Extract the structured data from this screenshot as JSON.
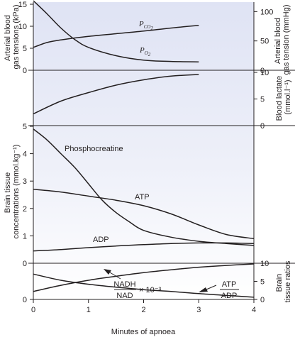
{
  "chart_data": [
    {
      "panel": "blood_gases",
      "type": "line",
      "ylabel_left": "Arterial blood gas tensions (kPa)",
      "ylabel_right": "Arterial blood gas tension (mmHg)",
      "left_ticks": [
        "15",
        "10",
        "5",
        "0"
      ],
      "right_ticks": [
        "100",
        "50",
        "0"
      ],
      "ylim": [
        0,
        16
      ],
      "series": [
        {
          "name": "Pco2",
          "label_main": "P",
          "label_sub": "CO",
          "label_sub2": "2",
          "x": [
            0,
            0.25,
            0.5,
            1,
            1.5,
            2,
            2.5,
            3
          ],
          "y": [
            5.2,
            6.3,
            6.9,
            7.7,
            8.3,
            8.9,
            9.6,
            10.2
          ]
        },
        {
          "name": "Po2",
          "label_main": "P",
          "label_sub": "O",
          "label_sub2": "2",
          "x": [
            0,
            0.25,
            0.5,
            0.75,
            1,
            1.5,
            2,
            2.5,
            3
          ],
          "y": [
            15.8,
            12.8,
            9.6,
            7.0,
            5.2,
            3.3,
            2.3,
            2.0,
            1.9
          ]
        }
      ]
    },
    {
      "panel": "blood_lactate",
      "type": "line",
      "ylabel_right": "Blood lactate (mmol l⁻¹)",
      "right_ticks": [
        "10",
        "5",
        "0"
      ],
      "ylim": [
        0,
        10
      ],
      "series": [
        {
          "name": "lactate",
          "x": [
            0,
            0.5,
            1,
            1.5,
            2,
            2.5,
            3
          ],
          "y": [
            2.2,
            4.6,
            6.2,
            7.6,
            8.6,
            9.3,
            9.6
          ]
        }
      ]
    },
    {
      "panel": "brain_metabolites",
      "type": "line",
      "ylabel_left": "Brain tissue concentrations (mmol.kg⁻¹)",
      "left_ticks": [
        "5",
        "4",
        "3",
        "2",
        "1",
        "0"
      ],
      "ylim": [
        0,
        5
      ],
      "series": [
        {
          "name": "Phosphocreatine",
          "x": [
            0,
            0.25,
            0.5,
            0.75,
            1,
            1.25,
            1.5,
            1.75,
            2,
            2.5,
            3,
            3.5,
            4
          ],
          "y": [
            4.9,
            4.5,
            4.0,
            3.5,
            2.9,
            2.3,
            1.85,
            1.5,
            1.2,
            0.95,
            0.8,
            0.72,
            0.65
          ]
        },
        {
          "name": "ATP",
          "x": [
            0,
            0.5,
            1,
            1.5,
            2,
            2.5,
            3,
            3.5,
            4
          ],
          "y": [
            2.7,
            2.6,
            2.45,
            2.3,
            2.1,
            1.8,
            1.4,
            1.05,
            0.9
          ]
        },
        {
          "name": "ADP",
          "x": [
            0,
            0.5,
            1,
            1.5,
            2,
            2.5,
            3,
            3.5,
            4
          ],
          "y": [
            0.45,
            0.5,
            0.57,
            0.63,
            0.68,
            0.72,
            0.74,
            0.74,
            0.72
          ]
        }
      ],
      "labels": {
        "pcr": "Phosphocreatine",
        "atp": "ATP",
        "adp": "ADP"
      }
    },
    {
      "panel": "brain_ratios",
      "type": "line",
      "ylabel_right": "Brain tissue ratios",
      "right_ticks": [
        "10",
        "5",
        "0"
      ],
      "left_ticks": [
        "0",
        "0"
      ],
      "ylim": [
        0,
        10
      ],
      "series": [
        {
          "name": "NADH/NAD x 10⁻³",
          "x": [
            0,
            0.5,
            1,
            1.5,
            2,
            2.5,
            3,
            3.5,
            4
          ],
          "y": [
            2.2,
            3.9,
            5.3,
            6.4,
            7.4,
            8.2,
            8.9,
            9.4,
            9.8
          ]
        },
        {
          "name": "ATP/ADP",
          "x": [
            0,
            0.5,
            1,
            1.5,
            2,
            2.5,
            3,
            3.5,
            4
          ],
          "y": [
            7.0,
            5.3,
            4.2,
            3.4,
            2.7,
            2.2,
            1.6,
            1.1,
            0.6
          ]
        }
      ],
      "labels": {
        "nadh": "NADH",
        "nad": "NAD",
        "factor": "× 10⁻³",
        "atp": "ATP",
        "adp": "ADP"
      }
    }
  ],
  "x_axis": {
    "ticks": [
      "0",
      "1",
      "2",
      "3",
      "4"
    ],
    "label": "Minutes of apnoea",
    "xlim": [
      0,
      4
    ]
  },
  "colors": {
    "background_top": "#dfe3f4",
    "background_bottom": "#ffffff",
    "line": "#231f20"
  }
}
